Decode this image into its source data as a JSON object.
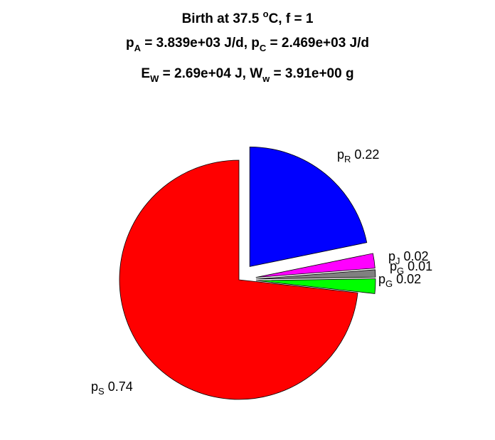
{
  "chart_data": {
    "type": "pie",
    "title_lines": [
      [
        {
          "t": "Birth at 37.5 "
        },
        {
          "t": "o",
          "sup": true
        },
        {
          "t": "C, f = 1"
        }
      ],
      [
        {
          "t": "p"
        },
        {
          "t": "A",
          "sub": true
        },
        {
          "t": " = 3.839e+03 J/d, p"
        },
        {
          "t": "C",
          "sub": true
        },
        {
          "t": " = 2.469e+03 J/d"
        }
      ],
      [
        {
          "t": "E"
        },
        {
          "t": "W",
          "sub": true
        },
        {
          "t": " = 2.69e+04 J, W"
        },
        {
          "t": "w",
          "sub": true
        },
        {
          "t": " = 3.91e+00 g"
        }
      ]
    ],
    "slices": [
      {
        "symbol": "p",
        "sub": "R",
        "value_label": "0.22",
        "value": 0.22,
        "color": "#0000ff",
        "exploded": true
      },
      {
        "symbol": "p",
        "sub": "J",
        "value_label": "0.02",
        "value": 0.02,
        "color": "#ff00ff",
        "exploded": true
      },
      {
        "symbol": "p",
        "sub": "G",
        "value_label": "0.01",
        "value": 0.01,
        "color": "#808080",
        "exploded": true
      },
      {
        "symbol": "p",
        "sub": "G",
        "value_label": "0.02",
        "value": 0.02,
        "color": "#00ff00",
        "exploded": true
      },
      {
        "symbol": "p",
        "sub": "S",
        "value_label": "0.74",
        "value": 0.74,
        "color": "#ff0000",
        "exploded": false
      }
    ]
  }
}
